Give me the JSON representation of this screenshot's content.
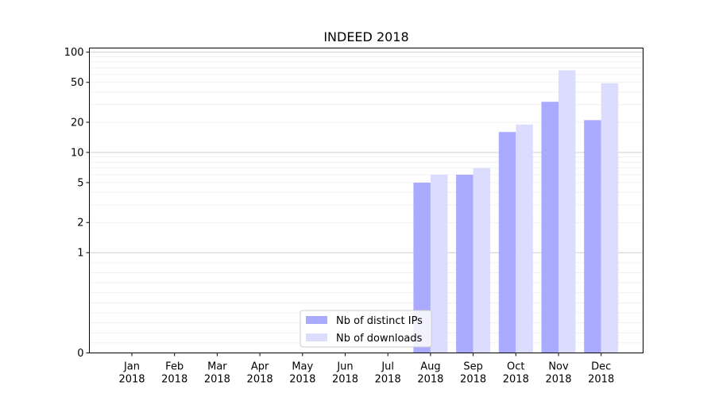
{
  "chart_data": {
    "type": "bar",
    "title": "INDEED 2018",
    "xlabel": "",
    "ylabel": "",
    "yscale": "symlog",
    "ylim": [
      0,
      110
    ],
    "categories": [
      "Jan\n2018",
      "Feb\n2018",
      "Mar\n2018",
      "Apr\n2018",
      "May\n2018",
      "Jun\n2018",
      "Jul\n2018",
      "Aug\n2018",
      "Sep\n2018",
      "Oct\n2018",
      "Nov\n2018",
      "Dec\n2018"
    ],
    "yticks": [
      {
        "value": 0,
        "label": "0"
      },
      {
        "value": 1,
        "label": "1"
      },
      {
        "value": 2,
        "label": "2"
      },
      {
        "value": 5,
        "label": "5"
      },
      {
        "value": 10,
        "label": "10"
      },
      {
        "value": 20,
        "label": "20"
      },
      {
        "value": 50,
        "label": "50"
      },
      {
        "value": 100,
        "label": "100"
      }
    ],
    "series": [
      {
        "name": "Nb of distinct IPs",
        "color": "#aaaaff",
        "values": [
          0,
          0,
          0,
          0,
          0,
          0,
          0,
          5,
          6,
          16,
          32,
          21
        ]
      },
      {
        "name": "Nb of downloads",
        "color": "#dcdcff",
        "values": [
          0,
          0,
          0,
          0,
          0,
          0,
          0,
          6,
          7,
          19,
          66,
          49
        ]
      }
    ],
    "grid": true,
    "legend_position": "lower-center"
  }
}
